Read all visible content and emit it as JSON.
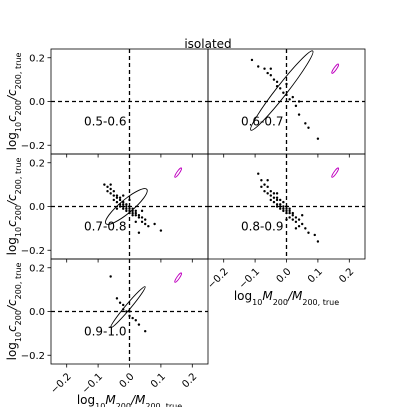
{
  "chart_data": {
    "type": "scatter",
    "title": "isolated",
    "xlabel": {
      "prefix": "log",
      "base": "10",
      "main": "M",
      "sub1": "200",
      "mid": "/M",
      "sub2": "200, true"
    },
    "ylabel": {
      "prefix": "log",
      "base": "10",
      "main": "c",
      "sub1": "200",
      "mid": "/c",
      "sub2": "200, true"
    },
    "xlim": [
      -0.25,
      0.25
    ],
    "ylim": [
      -0.24,
      0.24
    ],
    "xticks": [
      -0.2,
      -0.1,
      0.0,
      0.1,
      0.2
    ],
    "xtick_labels": [
      "−0.2",
      "−0.1",
      "0.0",
      "0.1",
      "0.2"
    ],
    "yticks": [
      -0.2,
      0.0,
      0.2
    ],
    "ytick_labels": [
      "−0.2",
      "0.0",
      "0.2"
    ],
    "reference_lines": {
      "x": 0,
      "y": 0,
      "style": "dashed"
    },
    "colors": {
      "points": "#000000",
      "ellipse": "#000000",
      "psf_ellipse": "#c000c0"
    },
    "panels": [
      {
        "label": "0.5-0.6",
        "points": [],
        "ellipse": null,
        "psf_ellipse": null
      },
      {
        "label": "0.6-0.7",
        "points": [
          [
            -0.11,
            0.19
          ],
          [
            -0.09,
            0.16
          ],
          [
            -0.07,
            0.15
          ],
          [
            -0.06,
            0.13
          ],
          [
            -0.05,
            0.12
          ],
          [
            -0.05,
            0.15
          ],
          [
            -0.04,
            0.1
          ],
          [
            -0.03,
            0.09
          ],
          [
            -0.03,
            0.07
          ],
          [
            -0.02,
            0.06
          ],
          [
            -0.01,
            0.04
          ],
          [
            0.0,
            0.03
          ],
          [
            0.01,
            0.01
          ],
          [
            0.02,
            0.02
          ],
          [
            0.03,
            -0.02
          ],
          [
            0.04,
            -0.06
          ],
          [
            0.06,
            -0.1
          ],
          [
            0.07,
            -0.12
          ],
          [
            0.1,
            -0.17
          ],
          [
            0.04,
            0.0
          ],
          [
            0.0,
            0.08
          ]
        ],
        "ellipse": {
          "cx": -0.015,
          "cy": 0.05,
          "a": 0.16,
          "b": 0.025,
          "angle_deg": -52
        },
        "psf_ellipse": {
          "cx": 0.155,
          "cy": 0.15,
          "a": 0.018,
          "b": 0.006,
          "angle_deg": -55
        }
      },
      {
        "label": "0.7-0.8",
        "points": [
          [
            -0.08,
            0.1
          ],
          [
            -0.07,
            0.09
          ],
          [
            -0.07,
            0.07
          ],
          [
            -0.06,
            0.08
          ],
          [
            -0.06,
            0.06
          ],
          [
            -0.05,
            0.07
          ],
          [
            -0.05,
            0.05
          ],
          [
            -0.05,
            0.03
          ],
          [
            -0.04,
            0.05
          ],
          [
            -0.04,
            0.04
          ],
          [
            -0.04,
            0.02
          ],
          [
            -0.03,
            0.04
          ],
          [
            -0.03,
            0.03
          ],
          [
            -0.03,
            0.01
          ],
          [
            -0.03,
            0.0
          ],
          [
            -0.02,
            0.02
          ],
          [
            -0.02,
            0.01
          ],
          [
            -0.02,
            0.0
          ],
          [
            -0.02,
            -0.01
          ],
          [
            -0.01,
            0.01
          ],
          [
            -0.01,
            0.0
          ],
          [
            -0.01,
            -0.01
          ],
          [
            -0.01,
            -0.02
          ],
          [
            0.0,
            0.0
          ],
          [
            0.0,
            -0.01
          ],
          [
            0.0,
            -0.02
          ],
          [
            0.0,
            -0.03
          ],
          [
            0.01,
            -0.01
          ],
          [
            0.01,
            -0.02
          ],
          [
            0.01,
            -0.03
          ],
          [
            0.01,
            -0.04
          ],
          [
            0.02,
            -0.02
          ],
          [
            0.02,
            -0.03
          ],
          [
            0.02,
            -0.04
          ],
          [
            0.03,
            -0.04
          ],
          [
            0.03,
            -0.05
          ],
          [
            0.04,
            -0.05
          ],
          [
            0.04,
            -0.07
          ],
          [
            0.05,
            -0.06
          ],
          [
            0.05,
            -0.08
          ],
          [
            0.06,
            -0.09
          ],
          [
            0.08,
            -0.08
          ],
          [
            0.1,
            -0.11
          ],
          [
            0.03,
            -0.12
          ],
          [
            -0.02,
            0.05
          ],
          [
            -0.06,
            0.1
          ],
          [
            0.0,
            0.03
          ],
          [
            0.02,
            -0.07
          ],
          [
            -0.04,
            -0.01
          ],
          [
            0.04,
            -0.02
          ]
        ],
        "ellipse": {
          "cx": -0.01,
          "cy": 0.0,
          "a": 0.085,
          "b": 0.03,
          "angle_deg": -40
        },
        "psf_ellipse": {
          "cx": 0.155,
          "cy": 0.155,
          "a": 0.018,
          "b": 0.006,
          "angle_deg": -55
        }
      },
      {
        "label": "0.8-0.9",
        "points": [
          [
            -0.09,
            0.15
          ],
          [
            -0.08,
            0.12
          ],
          [
            -0.08,
            0.09
          ],
          [
            -0.07,
            0.1
          ],
          [
            -0.07,
            0.07
          ],
          [
            -0.06,
            0.09
          ],
          [
            -0.06,
            0.06
          ],
          [
            -0.05,
            0.07
          ],
          [
            -0.05,
            0.05
          ],
          [
            -0.05,
            0.03
          ],
          [
            -0.04,
            0.06
          ],
          [
            -0.04,
            0.04
          ],
          [
            -0.04,
            0.02
          ],
          [
            -0.03,
            0.04
          ],
          [
            -0.03,
            0.03
          ],
          [
            -0.03,
            0.01
          ],
          [
            -0.03,
            0.0
          ],
          [
            -0.02,
            0.03
          ],
          [
            -0.02,
            0.01
          ],
          [
            -0.02,
            0.0
          ],
          [
            -0.02,
            -0.01
          ],
          [
            -0.01,
            0.02
          ],
          [
            -0.01,
            0.0
          ],
          [
            -0.01,
            -0.01
          ],
          [
            -0.01,
            -0.02
          ],
          [
            0.0,
            0.0
          ],
          [
            0.0,
            -0.01
          ],
          [
            0.0,
            -0.02
          ],
          [
            0.0,
            -0.03
          ],
          [
            0.01,
            -0.01
          ],
          [
            0.01,
            -0.02
          ],
          [
            0.01,
            -0.03
          ],
          [
            0.01,
            -0.05
          ],
          [
            0.02,
            -0.03
          ],
          [
            0.02,
            -0.04
          ],
          [
            0.02,
            -0.06
          ],
          [
            0.03,
            -0.05
          ],
          [
            0.03,
            -0.07
          ],
          [
            0.04,
            -0.06
          ],
          [
            0.04,
            -0.09
          ],
          [
            0.05,
            -0.08
          ],
          [
            0.06,
            -0.1
          ],
          [
            0.07,
            -0.12
          ],
          [
            0.09,
            -0.13
          ],
          [
            0.1,
            -0.16
          ],
          [
            -0.06,
            0.12
          ],
          [
            0.03,
            -0.1
          ],
          [
            0.0,
            -0.06
          ],
          [
            -0.03,
            0.06
          ],
          [
            0.05,
            -0.04
          ]
        ],
        "ellipse": null,
        "psf_ellipse": {
          "cx": 0.155,
          "cy": 0.155,
          "a": 0.018,
          "b": 0.006,
          "angle_deg": -55
        }
      },
      {
        "label": "0.9-1.0",
        "points": [
          [
            -0.06,
            0.16
          ],
          [
            -0.04,
            0.06
          ],
          [
            -0.03,
            0.04
          ],
          [
            -0.02,
            0.03
          ],
          [
            -0.02,
            0.01
          ],
          [
            -0.01,
            0.0
          ],
          [
            0.0,
            0.0
          ],
          [
            0.0,
            -0.02
          ],
          [
            0.01,
            -0.03
          ],
          [
            0.02,
            -0.04
          ],
          [
            0.03,
            -0.06
          ],
          [
            0.05,
            -0.09
          ]
        ],
        "ellipse": {
          "cx": -0.005,
          "cy": 0.02,
          "a": 0.085,
          "b": 0.012,
          "angle_deg": -50
        },
        "psf_ellipse": {
          "cx": 0.155,
          "cy": 0.155,
          "a": 0.018,
          "b": 0.006,
          "angle_deg": -55
        }
      }
    ]
  }
}
